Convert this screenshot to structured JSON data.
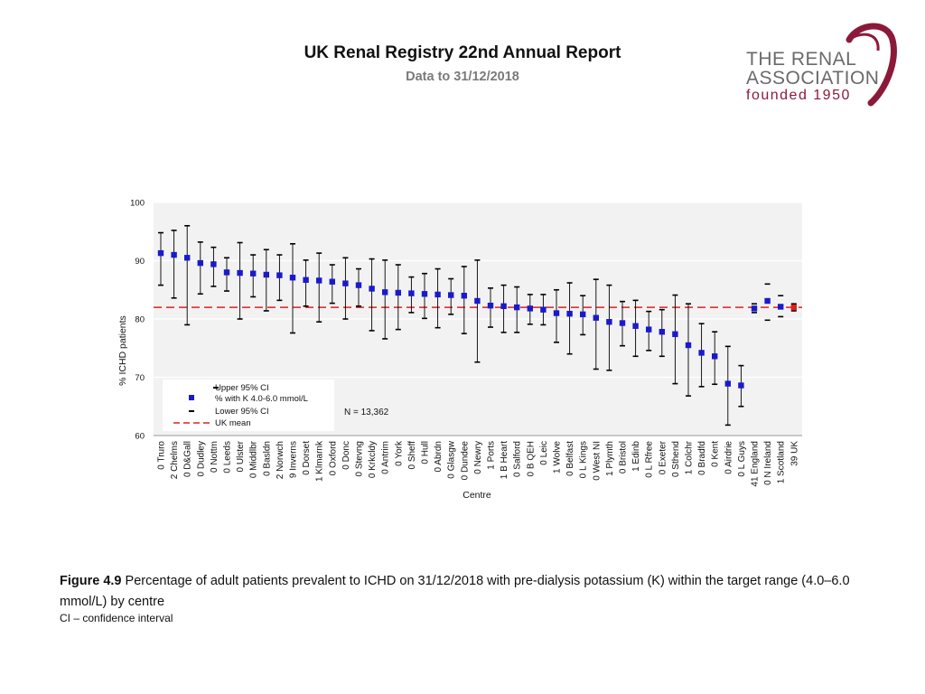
{
  "header": {
    "title": "UK Renal Registry 22nd Annual Report",
    "subtitle": "Data to 31/12/2018"
  },
  "logo": {
    "line1": "THE RENAL",
    "line2": "ASSOCIATION",
    "line3": "founded 1950",
    "brand_color": "#8b1a3a"
  },
  "caption": {
    "figure_label": "Figure 4.9",
    "text": "Percentage of adult patients prevalent to ICHD on 31/12/2018 with pre-dialysis potassium (K) within the target range (4.0–6.0 mmol/L) by centre",
    "note": "CI – confidence interval"
  },
  "chart_data": {
    "type": "scatter",
    "title": "",
    "xlabel": "Centre",
    "ylabel": "% ICHD patients",
    "ylim": [
      60,
      100
    ],
    "yticks": [
      60,
      70,
      80,
      90,
      100
    ],
    "grid": true,
    "uk_mean": 82.0,
    "n_label": "N = 13,362",
    "legend": [
      "Upper 95% CI",
      "% with K 4.0-6.0 mmol/L",
      "Lower 95% CI",
      "UK mean"
    ],
    "colors": {
      "point": "#1a1acc",
      "mean": "#e02020",
      "uk_point": "#e02020",
      "ci": "#000000"
    },
    "categories": [
      "0 Truro",
      "2 Chelms",
      "0 D&Gall",
      "0 Dudley",
      "0 Nottm",
      "0 Leeds",
      "0 Ulster",
      "0 Middlbr",
      "0 Basldn",
      "2 Norwch",
      "9 Inverns",
      "0 Dorset",
      "1 Klmarnk",
      "0 Oxford",
      "0 Donc",
      "0 Stevng",
      "0 Krkcldy",
      "0 Antrim",
      "0 York",
      "0 Sheff",
      "0 Hull",
      "0 Abrdn",
      "0 Glasgw",
      "0 Dundee",
      "0 Newry",
      "1 Ports",
      "1 B Heart",
      "0 Salford",
      "0 B QEH",
      "0 Leic",
      "1 Wolve",
      "0 Belfast",
      "0 L Kings",
      "0 West NI",
      "1 Plymth",
      "0 Bristol",
      "1 Edinb",
      "0 L Rfree",
      "0 Exeter",
      "0 Sthend",
      "1 Colchr",
      "0 Bradfd",
      "0 Kent",
      "0 Airdrie",
      "0 L Guys",
      "41 England",
      "0 N Ireland",
      "1 Scotland",
      "39 UK"
    ],
    "values": [
      91.3,
      91.0,
      90.5,
      89.6,
      89.4,
      88.0,
      87.9,
      87.8,
      87.6,
      87.5,
      87.1,
      86.7,
      86.6,
      86.4,
      86.1,
      85.8,
      85.2,
      84.6,
      84.5,
      84.4,
      84.3,
      84.2,
      84.1,
      84.0,
      83.1,
      82.3,
      82.2,
      82.0,
      81.8,
      81.6,
      81.0,
      80.9,
      80.8,
      80.2,
      79.5,
      79.3,
      78.8,
      78.2,
      77.8,
      77.4,
      75.5,
      74.2,
      73.6,
      68.9,
      68.6,
      81.8,
      83.1,
      82.1,
      82.0
    ],
    "upper": [
      94.8,
      95.2,
      96.0,
      93.2,
      92.3,
      90.5,
      93.1,
      91.0,
      91.9,
      91.0,
      92.9,
      90.1,
      91.3,
      89.3,
      90.5,
      88.6,
      90.3,
      90.1,
      89.3,
      87.2,
      87.8,
      88.6,
      86.9,
      89.0,
      90.1,
      85.3,
      85.8,
      85.5,
      84.2,
      84.2,
      85.0,
      86.2,
      84.0,
      86.8,
      85.8,
      83.0,
      83.2,
      81.3,
      81.6,
      84.1,
      82.6,
      79.2,
      77.8,
      75.3,
      72.0,
      82.6,
      86.0,
      84.0,
      82.6
    ],
    "lower": [
      85.8,
      83.6,
      79.0,
      84.3,
      85.6,
      84.8,
      80.0,
      83.8,
      81.4,
      83.2,
      77.6,
      82.2,
      79.5,
      82.7,
      80.0,
      82.2,
      78.0,
      76.6,
      78.2,
      81.1,
      80.1,
      78.5,
      80.8,
      77.5,
      72.6,
      78.6,
      77.7,
      77.7,
      79.1,
      79.0,
      76.0,
      74.0,
      77.3,
      71.4,
      71.2,
      75.4,
      73.6,
      74.6,
      73.6,
      68.9,
      66.8,
      68.4,
      68.8,
      61.8,
      65.0,
      81.1,
      79.8,
      80.4,
      81.4
    ],
    "aggregate_categories": [
      "41 England",
      "0 N Ireland",
      "1 Scotland",
      "39 UK"
    ]
  }
}
